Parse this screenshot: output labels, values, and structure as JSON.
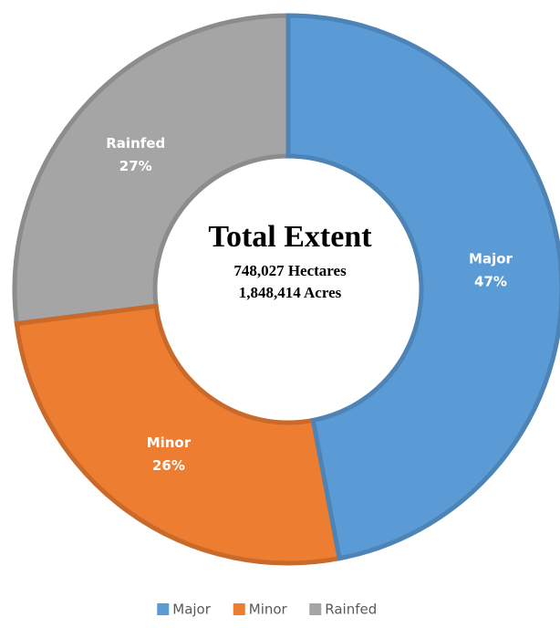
{
  "chart_data": {
    "type": "donut",
    "categories": [
      "Major",
      "Minor",
      "Rainfed"
    ],
    "values": [
      47,
      26,
      27
    ],
    "value_labels": [
      "47%",
      "26%",
      "27%"
    ],
    "colors": [
      "#5b9bd5",
      "#ed7d31",
      "#a5a5a5"
    ],
    "annotations": [
      "Total Extent",
      "748,027 Hectares",
      "1,848,414 Acres"
    ],
    "legend": "bottom"
  }
}
